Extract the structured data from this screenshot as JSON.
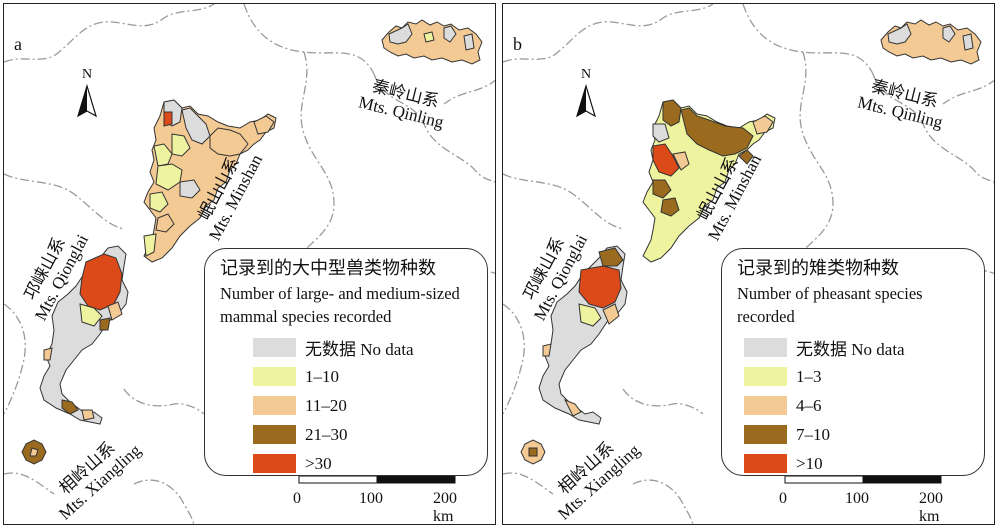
{
  "colors": {
    "no_data": "#dcdcdc",
    "c1": "#eef3a0",
    "c2": "#f3c994",
    "c3": "#9a6b1f",
    "c4": "#db4a18",
    "border": "#9a9a9a",
    "outline": "#333333"
  },
  "north_arrow": {
    "label": "N",
    "icon": "north-arrow-icon"
  },
  "mountains": {
    "qinling": {
      "cn": "秦岭山系",
      "en": "Mts. Qinling"
    },
    "minshan": {
      "cn": "岷山山系",
      "en": "Mts. Minshan"
    },
    "qionglai": {
      "cn": "邛崃山系",
      "en": "Mts. Qionglai"
    },
    "xiangling": {
      "cn": "相岭山系",
      "en": "Mts. Xiangling"
    }
  },
  "panels": [
    {
      "letter": "a",
      "legend": {
        "title": "记录到的大中型兽类物种数",
        "subtitle": "Number of large- and medium-sized mammal species recorded",
        "items": [
          {
            "label": "无数据 No data",
            "color": "#dcdcdc"
          },
          {
            "label": "1–10",
            "color": "#eef3a0"
          },
          {
            "label": "11–20",
            "color": "#f3c994"
          },
          {
            "label": "21–30",
            "color": "#9a6b1f"
          },
          {
            "label": ">30",
            "color": "#db4a18"
          }
        ]
      },
      "scalebar": {
        "ticks": [
          "0",
          "100",
          "200 km"
        ]
      }
    },
    {
      "letter": "b",
      "legend": {
        "title": "记录到的雉类物种数",
        "subtitle": "Number of pheasant species recorded",
        "items": [
          {
            "label": "无数据 No data",
            "color": "#dcdcdc"
          },
          {
            "label": "1–3",
            "color": "#eef3a0"
          },
          {
            "label": "4–6",
            "color": "#f3c994"
          },
          {
            "label": "7–10",
            "color": "#9a6b1f"
          },
          {
            "label": ">10",
            "color": "#db4a18"
          }
        ]
      },
      "scalebar": {
        "ticks": [
          "0",
          "100",
          "200 km"
        ]
      }
    }
  ]
}
